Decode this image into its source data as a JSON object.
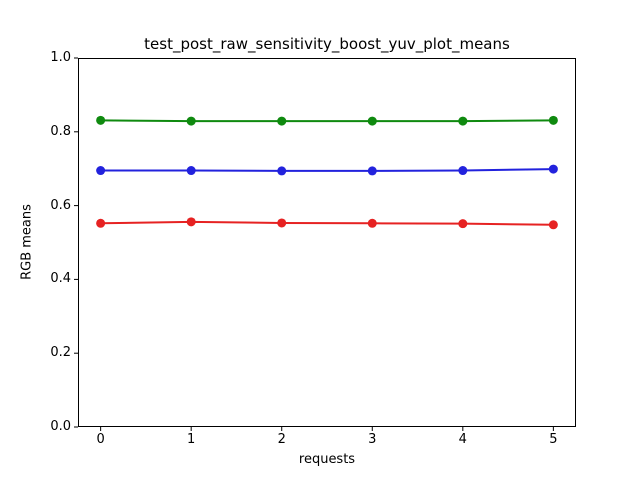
{
  "figure": {
    "background": "#ffffff",
    "frame_color": "#000000"
  },
  "chart_data": {
    "type": "line",
    "title": "test_post_raw_sensitivity_boost_yuv_plot_means",
    "xlabel": "requests",
    "ylabel": "RGB means",
    "x": [
      0,
      1,
      2,
      3,
      4,
      5
    ],
    "xlim": [
      -0.25,
      5.25
    ],
    "ylim": [
      0.0,
      1.0
    ],
    "xtick_labels": [
      "0",
      "1",
      "2",
      "3",
      "4",
      "5"
    ],
    "xtick_values": [
      0,
      1,
      2,
      3,
      4,
      5
    ],
    "ytick_labels": [
      "0.0",
      "0.2",
      "0.4",
      "0.6",
      "0.8",
      "1.0"
    ],
    "ytick_values": [
      0.0,
      0.2,
      0.4,
      0.6,
      0.8,
      1.0
    ],
    "grid": false,
    "legend": "none",
    "marker": "circle",
    "series": [
      {
        "name": "green-series",
        "color": "#0f8a0f",
        "values": [
          0.831,
          0.829,
          0.829,
          0.829,
          0.829,
          0.831
        ]
      },
      {
        "name": "blue-series",
        "color": "#2222dd",
        "values": [
          0.695,
          0.695,
          0.694,
          0.694,
          0.695,
          0.699
        ]
      },
      {
        "name": "red-series",
        "color": "#e62222",
        "values": [
          0.552,
          0.556,
          0.553,
          0.552,
          0.551,
          0.548
        ]
      }
    ]
  }
}
